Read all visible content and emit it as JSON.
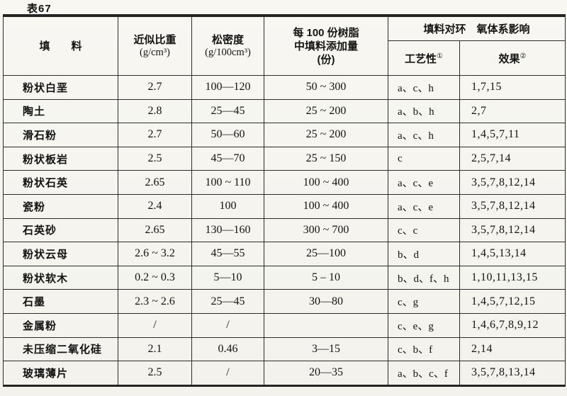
{
  "page": {
    "title": "表67"
  },
  "colors": {
    "paper": "#f8f7f2",
    "ink": "#161616",
    "border": "#2c2c2c"
  },
  "table": {
    "headers": {
      "filler": "填　　料",
      "gravity_line1": "近似比重",
      "gravity_unit": "(g/cm³)",
      "density_line1": "松密度",
      "density_unit": "(g/100cm³)",
      "amount_line1": "每 100 份树脂",
      "amount_line2": "中填料添加量",
      "amount_line3": "(份)",
      "effect_group": "填料对环　氧体系影响",
      "process_label": "工艺性",
      "process_sup": "①",
      "result_label": "效果",
      "result_sup": "②"
    },
    "column_names": [
      "cell-filler",
      "cell-specific-gravity",
      "cell-bulk-density",
      "cell-amount-per-100-resin",
      "cell-processability",
      "cell-effect"
    ],
    "rows": [
      [
        "粉状白垩",
        "2.7",
        "100—120",
        "50 ~ 300",
        "a、c、h",
        "1,7,15"
      ],
      [
        "陶土",
        "2.8",
        "25—45",
        "25 ~ 200",
        "a、b、h",
        "2,7"
      ],
      [
        "滑石粉",
        "2.7",
        "50—60",
        "25 ~ 200",
        "a、c、h",
        "1,4,5,7,11"
      ],
      [
        "粉状板岩",
        "2.5",
        "45—70",
        "25 ~ 150",
        "c",
        "2,5,7,14"
      ],
      [
        "粉状石英",
        "2.65",
        "100 ~ 110",
        "100 ~ 400",
        "a、c、e",
        "3,5,7,8,12,14"
      ],
      [
        "瓷粉",
        "2.4",
        "100",
        "100 ~ 400",
        "a、c、e",
        "3,5,7,8,12,14"
      ],
      [
        "石英砂",
        "2.65",
        "130—160",
        "300 ~ 700",
        "c、c",
        "3,5,7,8,12,14"
      ],
      [
        "粉状云母",
        "2.6 ~ 3.2",
        "45—55",
        "25—100",
        "b、d",
        "1,4,5,13,14"
      ],
      [
        "粉状软木",
        "0.2 ~ 0.3",
        "5—10",
        "5 – 10",
        "b、d、f、h",
        "1,10,11,13,15"
      ],
      [
        "石墨",
        "2.3 ~ 2.6",
        "25—45",
        "30—80",
        "c、g",
        "1,4,5,7,12,15"
      ],
      [
        "金属粉",
        "/",
        "/",
        "",
        "c、e、g",
        "1,4,6,7,8,9,12"
      ],
      [
        "未压缩二氧化硅",
        "2.1",
        "0.46",
        "3—15",
        "c、b、f",
        "2,14"
      ],
      [
        "玻璃薄片",
        "2.5",
        "/",
        "20—35",
        "a、b、c、f",
        "3,5,7,8,13,14"
      ]
    ]
  }
}
